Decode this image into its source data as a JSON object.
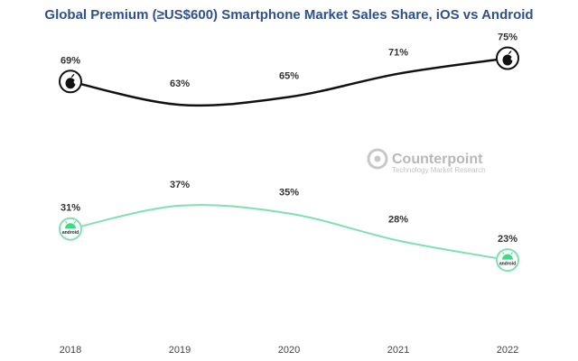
{
  "chart_data": {
    "type": "line",
    "title": "Global Premium (≥US$600) Smartphone Market Sales Share, iOS vs Android",
    "categories": [
      "2018",
      "2019",
      "2020",
      "2021",
      "2022"
    ],
    "series": [
      {
        "name": "iOS",
        "values": [
          69,
          63,
          65,
          71,
          75
        ],
        "labels": [
          "69%",
          "63%",
          "65%",
          "71%",
          "75%"
        ],
        "color": "#111111",
        "icon": "apple-logo-icon"
      },
      {
        "name": "Android",
        "values": [
          31,
          37,
          35,
          28,
          23
        ],
        "labels": [
          "31%",
          "37%",
          "35%",
          "28%",
          "23%"
        ],
        "color": "#7fe0b0",
        "icon": "android-logo-icon",
        "icon_text": "android"
      }
    ],
    "grid": false,
    "legend": "none",
    "value_unit": "%"
  },
  "watermark": {
    "brand": "Counterpoint",
    "tagline": "Technology Market Research"
  }
}
